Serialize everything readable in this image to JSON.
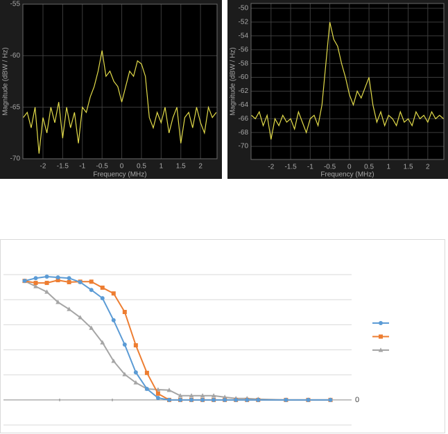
{
  "chart_data": [
    {
      "type": "line",
      "xlabel": "Frequency (MHz)",
      "ylabel": "Magnitude (dBW / Hz)",
      "color": "#e3dc4a",
      "grid": true,
      "xlim": [
        -2.51,
        2.42
      ],
      "ylim": [
        -70,
        -55
      ],
      "xticks": [
        -2,
        -1.5,
        -1,
        -0.5,
        0,
        0.5,
        1,
        1.5,
        2
      ],
      "yticks": [
        -70,
        -65,
        -60,
        -55
      ],
      "x": [
        -2.5,
        -2.4,
        -2.3,
        -2.2,
        -2.1,
        -2.0,
        -1.9,
        -1.8,
        -1.7,
        -1.6,
        -1.5,
        -1.4,
        -1.3,
        -1.2,
        -1.1,
        -1.0,
        -0.9,
        -0.8,
        -0.7,
        -0.6,
        -0.5,
        -0.4,
        -0.3,
        -0.2,
        -0.1,
        0,
        0.1,
        0.2,
        0.3,
        0.4,
        0.5,
        0.6,
        0.7,
        0.8,
        0.9,
        1.0,
        1.1,
        1.2,
        1.3,
        1.4,
        1.5,
        1.6,
        1.7,
        1.8,
        1.9,
        2.0,
        2.1,
        2.2,
        2.3,
        2.4
      ],
      "values": [
        -66,
        -65.5,
        -67,
        -65,
        -69.5,
        -66,
        -67.5,
        -65,
        -66.5,
        -64.5,
        -68,
        -65,
        -67,
        -65.5,
        -68.5,
        -65,
        -65.5,
        -64,
        -63,
        -61.5,
        -59.5,
        -62,
        -61.5,
        -62.5,
        -63,
        -64.5,
        -63,
        -61.5,
        -62,
        -60.5,
        -60.8,
        -62,
        -66,
        -67,
        -65.5,
        -66.5,
        -65,
        -67.5,
        -66,
        -65,
        -68.5,
        -66,
        -65.5,
        -67,
        -65,
        -66.5,
        -67.5,
        -65,
        -66,
        -65.5
      ]
    },
    {
      "type": "line",
      "xlabel": "Frequency (MHz)",
      "ylabel": "Magnitude (dBW / Hz)",
      "color": "#e3dc4a",
      "grid": true,
      "xlim": [
        -2.51,
        2.41
      ],
      "ylim": [
        -71.9,
        -49.3
      ],
      "xticks": [
        -2,
        -1.5,
        -1,
        -0.5,
        0,
        0.5,
        1,
        1.5,
        2
      ],
      "yticks": [
        -70,
        -68,
        -66,
        -64,
        -62,
        -60,
        -58,
        -56,
        -54,
        -52,
        -50
      ],
      "x": [
        -2.5,
        -2.4,
        -2.3,
        -2.2,
        -2.1,
        -2.0,
        -1.9,
        -1.8,
        -1.7,
        -1.6,
        -1.5,
        -1.4,
        -1.3,
        -1.2,
        -1.1,
        -1.0,
        -0.9,
        -0.8,
        -0.7,
        -0.6,
        -0.5,
        -0.4,
        -0.3,
        -0.2,
        -0.1,
        0,
        0.1,
        0.2,
        0.3,
        0.4,
        0.5,
        0.6,
        0.7,
        0.8,
        0.9,
        1.0,
        1.1,
        1.2,
        1.3,
        1.4,
        1.5,
        1.6,
        1.7,
        1.8,
        1.9,
        2.0,
        2.1,
        2.2,
        2.3,
        2.4
      ],
      "values": [
        -65.5,
        -66,
        -65,
        -67,
        -65.5,
        -69,
        -66,
        -67,
        -65.5,
        -66.5,
        -66,
        -67.5,
        -65,
        -66.5,
        -68,
        -66,
        -65.5,
        -67,
        -64,
        -58,
        -52,
        -54.5,
        -55.5,
        -58,
        -60,
        -62.5,
        -64,
        -62,
        -63,
        -61.5,
        -60,
        -64,
        -66.5,
        -65,
        -67,
        -65.5,
        -66,
        -67,
        -65,
        -66.5,
        -66,
        -67,
        -65,
        -66,
        -65.5,
        -66.5,
        -65,
        -66,
        -65.5,
        -66
      ]
    },
    {
      "type": "line",
      "legend": "right",
      "xlim": [
        -1.9,
        29.4
      ],
      "ylim": [
        -1,
        6
      ],
      "yticks": [
        0
      ],
      "grid_lines": [
        1,
        2,
        3,
        4,
        5
      ],
      "x": [
        0,
        1,
        2,
        3,
        4,
        5,
        6,
        7,
        8,
        9,
        10,
        11,
        12,
        13,
        14,
        15,
        16,
        17,
        18,
        19,
        20,
        21,
        23.5,
        25.5,
        27.5
      ],
      "series": [
        {
          "color": "#5b9bd5",
          "marker": "circle",
          "values": [
            4.75,
            4.86,
            4.92,
            4.89,
            4.86,
            4.7,
            4.39,
            4.06,
            3.18,
            2.21,
            1.1,
            0.44,
            0.08,
            0,
            0,
            0,
            0,
            0,
            0,
            0,
            0,
            0,
            0,
            0,
            0
          ]
        },
        {
          "color": "#ed7d31",
          "marker": "square",
          "values": [
            4.75,
            4.67,
            4.67,
            4.78,
            4.7,
            4.72,
            4.72,
            4.48,
            4.25,
            3.51,
            2.18,
            1.08,
            0.25,
            0,
            0,
            0,
            0,
            0,
            0,
            0,
            0,
            0,
            0,
            0,
            0
          ]
        },
        {
          "color": "#a5a5a5",
          "marker": "triangle",
          "values": [
            4.75,
            4.53,
            4.31,
            3.9,
            3.62,
            3.29,
            2.87,
            2.29,
            1.55,
            1.02,
            0.69,
            0.44,
            0.41,
            0.39,
            0.17,
            0.17,
            0.17,
            0.17,
            0.11,
            0.06,
            0.06,
            0.03,
            0,
            0,
            0
          ]
        }
      ]
    }
  ]
}
